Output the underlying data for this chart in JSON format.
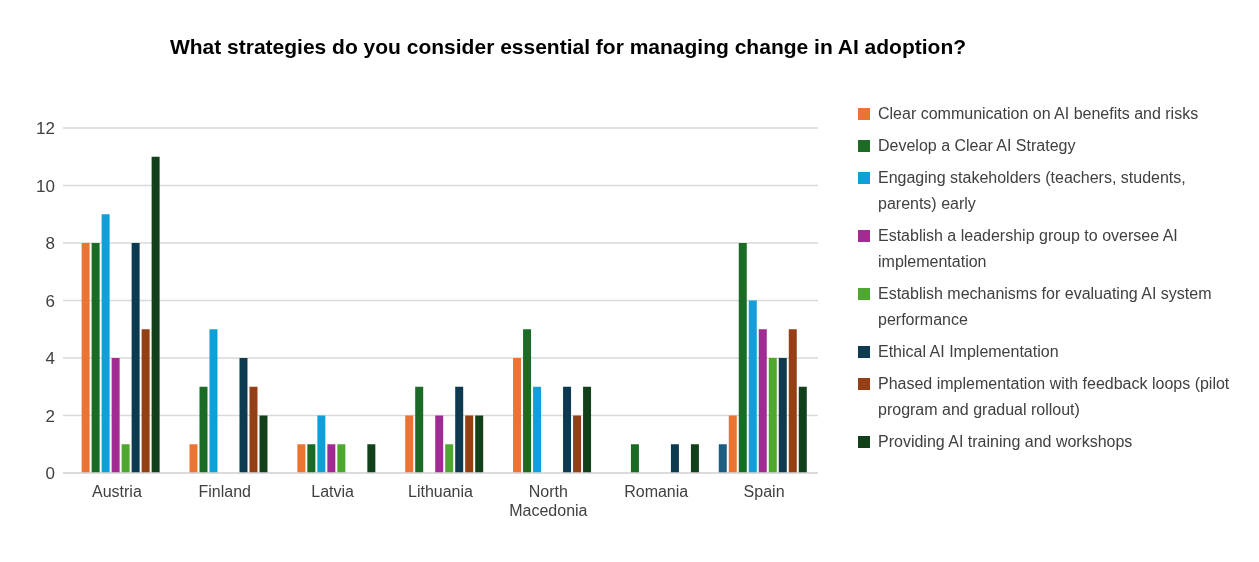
{
  "chart_data": {
    "type": "bar",
    "title": "What strategies do you consider essential for managing change in AI adoption?",
    "categories": [
      "Austria",
      "Finland",
      "Latvia",
      "Lithuania",
      "North Macedonia",
      "Romania",
      "Spain"
    ],
    "series": [
      {
        "color": "#1b5e80",
        "values": [
          null,
          null,
          null,
          null,
          null,
          null,
          1
        ]
      },
      {
        "name": "Clear communication on AI benefits and risks",
        "color": "#ea7434",
        "values": [
          8,
          1,
          1,
          2,
          4,
          0,
          2
        ]
      },
      {
        "name": "Develop a Clear AI Strategy",
        "color": "#1b6b27",
        "values": [
          8,
          3,
          1,
          3,
          5,
          1,
          8
        ]
      },
      {
        "name": "Engaging stakeholders (teachers, students, parents) early",
        "color": "#119fd9",
        "values": [
          9,
          5,
          2,
          0,
          3,
          0,
          6
        ]
      },
      {
        "name": "Establish a leadership group to oversee AI implementation",
        "color": "#a12b93",
        "values": [
          4,
          0,
          1,
          2,
          0,
          0,
          5
        ]
      },
      {
        "name": "Establish mechanisms for evaluating AI system performance",
        "color": "#4ea72e",
        "values": [
          1,
          0,
          1,
          1,
          0,
          0,
          4
        ]
      },
      {
        "name": "Ethical AI Implementation",
        "color": "#0e3a50",
        "values": [
          8,
          4,
          0,
          3,
          3,
          1,
          4
        ]
      },
      {
        "name": "Phased implementation with feedback loops (pilot program and gradual rollout)",
        "color": "#953f14",
        "values": [
          5,
          3,
          0,
          2,
          2,
          0,
          5
        ]
      },
      {
        "name": "Providing AI training and workshops",
        "color": "#12401a",
        "values": [
          11,
          2,
          1,
          2,
          3,
          1,
          3
        ]
      }
    ],
    "ylim": [
      0,
      12
    ],
    "yticks": [
      0,
      2,
      4,
      6,
      8,
      10,
      12
    ],
    "grid": "y",
    "legend": "right"
  }
}
